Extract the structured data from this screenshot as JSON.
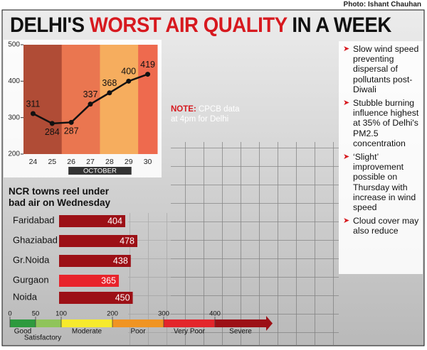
{
  "photo_credit": "Photo: Ishant Chauhan",
  "title": [
    "DELHI'S",
    "WORST AIR QUALITY",
    "IN A WEEK"
  ],
  "note": {
    "label": "NOTE:",
    "text": "CPCB data at 4pm for Delhi"
  },
  "bullets": [
    "Slow wind speed preventing dispersal of pollutants post-Diwali",
    "Stubble burning influence highest at 35% of Delhi's PM2.5 concentration",
    "‘Slight’ improvement possible on Thursday with increase in wind speed",
    "Cloud cover may also reduce"
  ],
  "chart_data": [
    {
      "type": "line",
      "categories": [
        "24",
        "25",
        "26",
        "27",
        "28",
        "29",
        "30"
      ],
      "xlabel": "OCTOBER",
      "values": [
        311,
        284,
        287,
        337,
        368,
        400,
        419
      ],
      "color": "#111111",
      "band_colors": [
        "#b04c36",
        "#b04c36",
        "#ea7650",
        "#ea7650",
        "#f6ad5e",
        "#f6ad5e",
        "#ee6a4e"
      ],
      "ylim": [
        200,
        500
      ],
      "yticks": [
        200,
        300,
        400,
        500
      ]
    },
    {
      "type": "bar",
      "orientation": "horizontal",
      "title": "NCR towns reel under bad air on Wednesday",
      "categories": [
        "Faridabad",
        "Ghaziabad",
        "Gr.Noida",
        "Gurgaon",
        "Noida"
      ],
      "values": [
        404,
        478,
        438,
        365,
        450
      ],
      "colors": [
        "#9c1016",
        "#9c1016",
        "#9c1016",
        "#e8232b",
        "#9c1016"
      ]
    },
    {
      "type": "scale",
      "categories": [
        "Good",
        "Satisfactory",
        "Moderate",
        "Poor",
        "Very Poor",
        "Severe"
      ],
      "colors": [
        "#2e9a3e",
        "#8fc45a",
        "#f6ea2c",
        "#f09422",
        "#e3262b",
        "#9c1016"
      ],
      "xticks": [
        0,
        50,
        100,
        200,
        300,
        400
      ],
      "xlim": [
        0,
        500
      ]
    }
  ]
}
